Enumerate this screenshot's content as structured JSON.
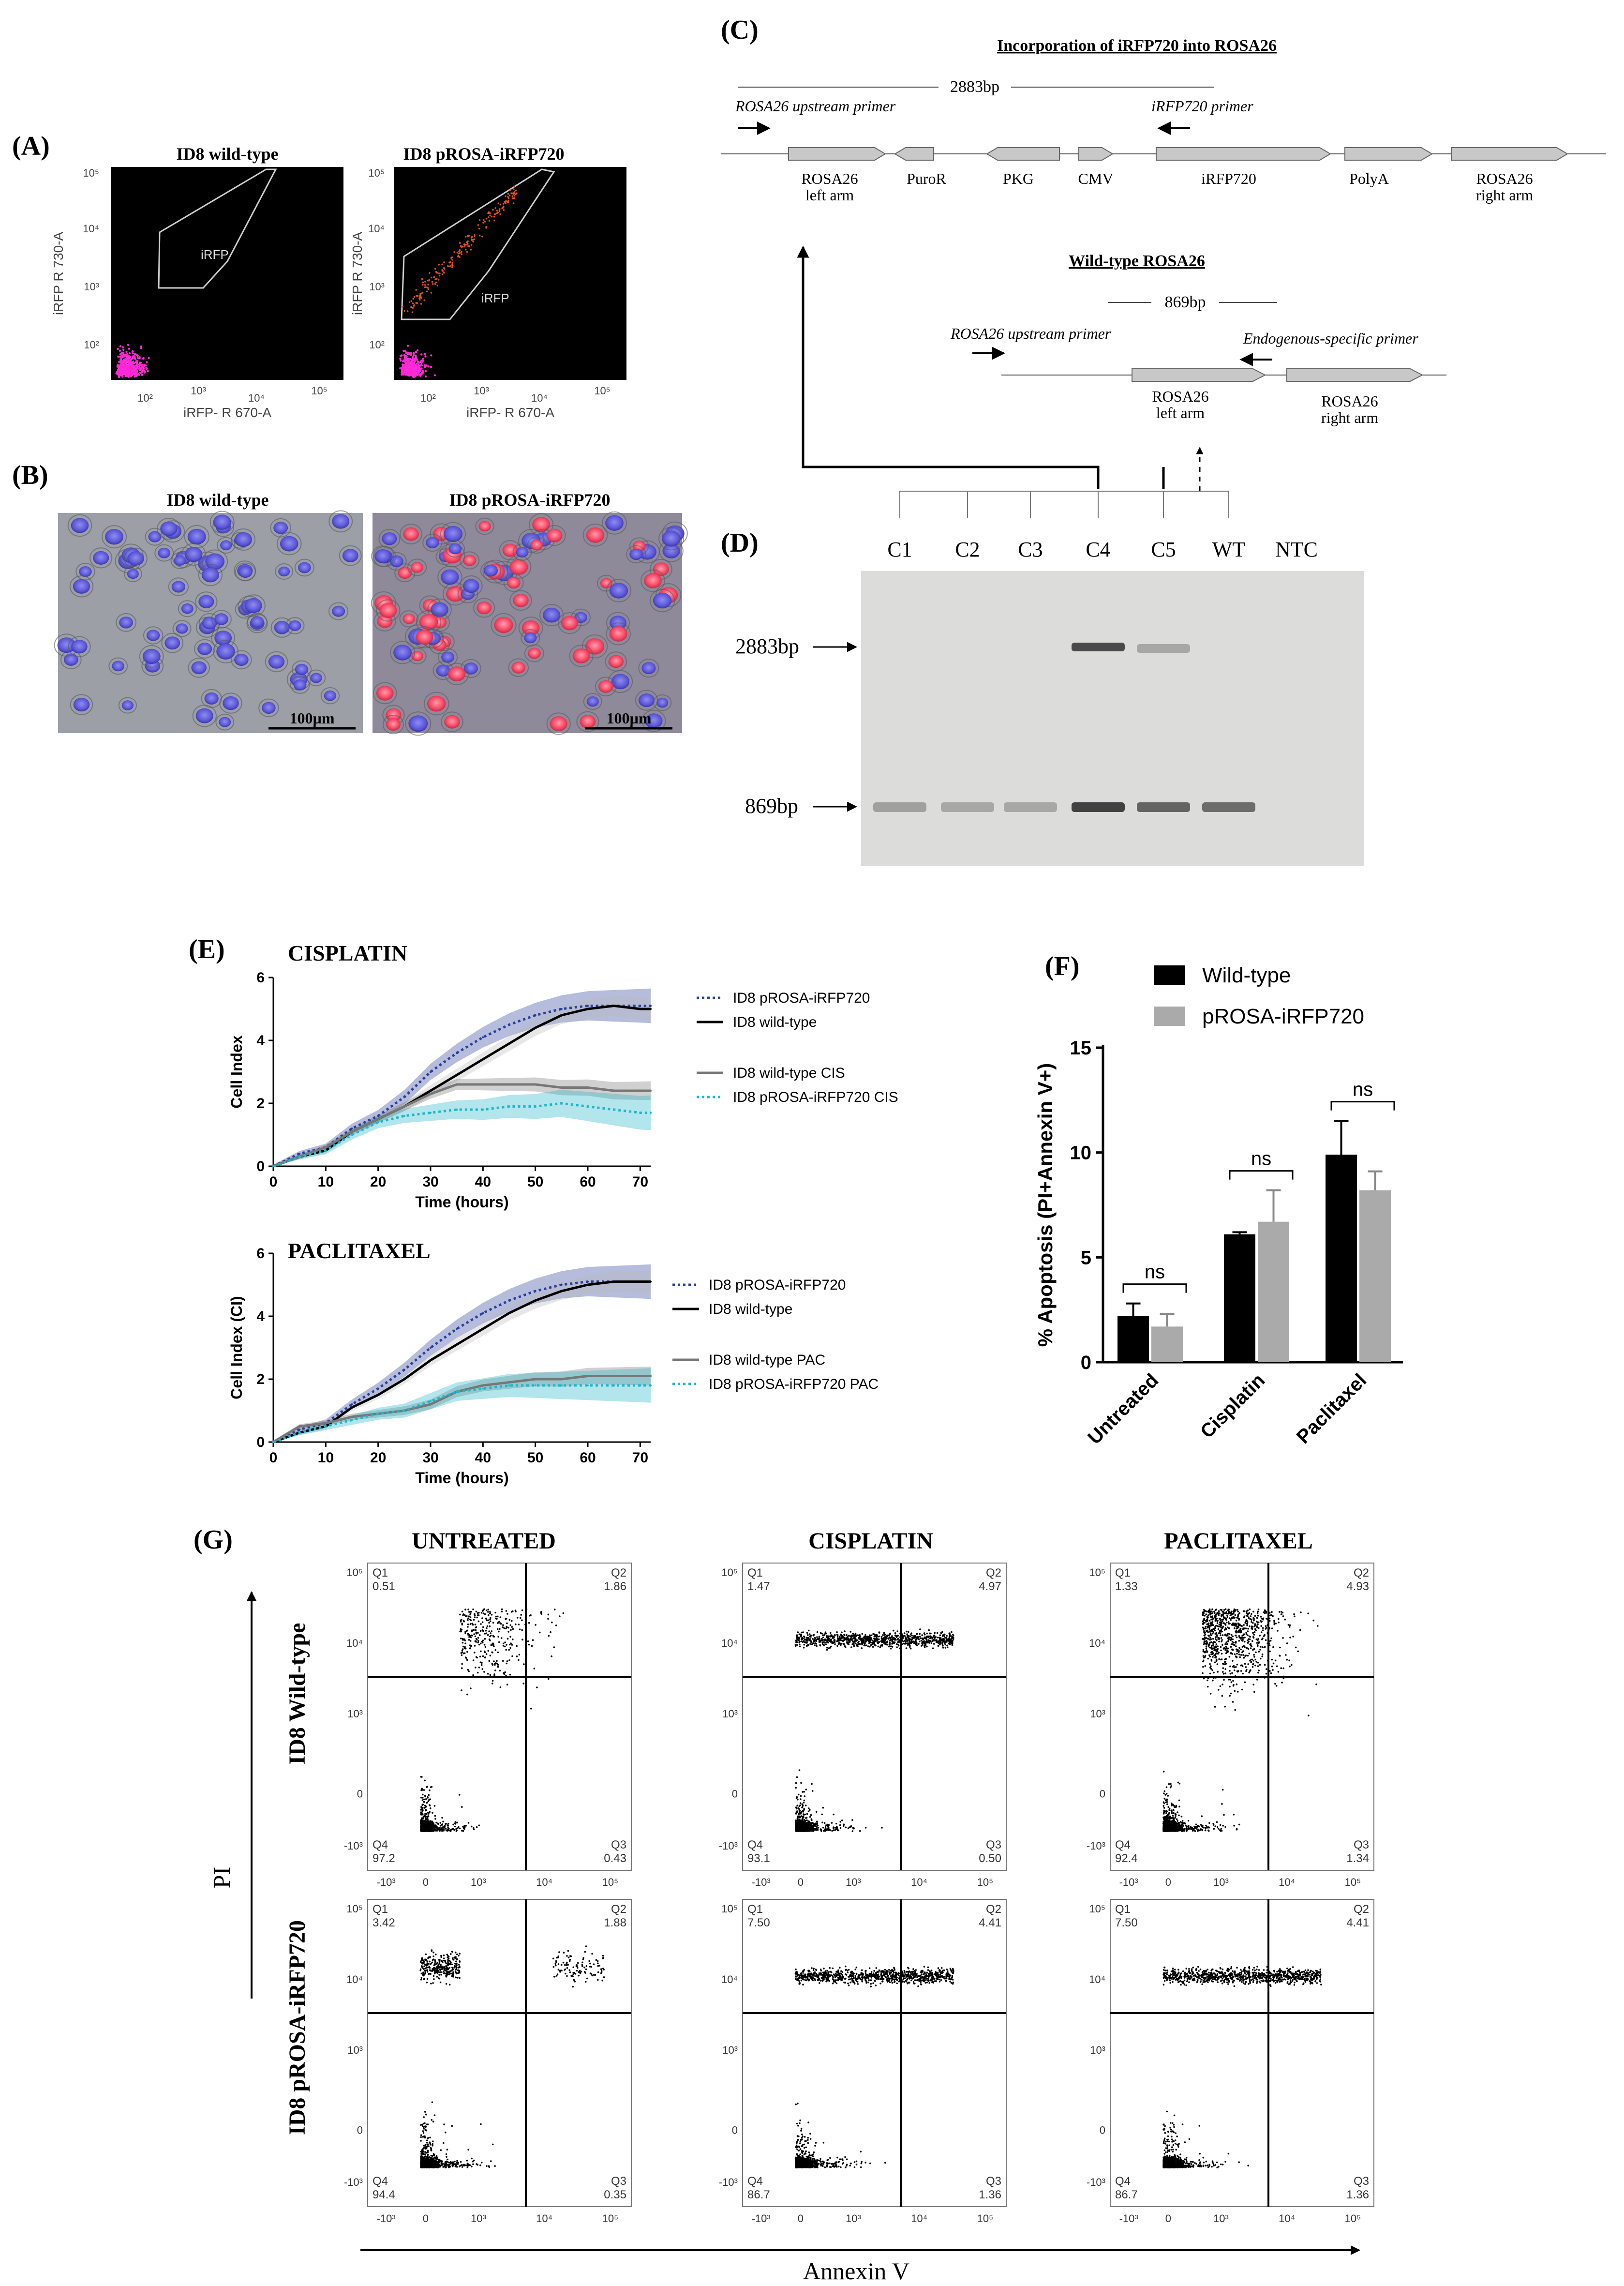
{
  "panelA": {
    "label": "(A)",
    "plots": [
      {
        "title": "ID8 wild-type",
        "gate": "iRFP",
        "ylabel": "iRFP R 730-A",
        "xlabel": "iRFP- R 670-A"
      },
      {
        "title": "ID8 pROSA-iRFP720",
        "gate": "iRFP",
        "ylabel": "iRFP R 730-A",
        "xlabel": "iRFP- R 670-A"
      }
    ],
    "yticks": [
      "10²",
      "10³",
      "10⁴",
      "10⁵"
    ],
    "xticks": [
      "10²",
      "10³",
      "10⁴",
      "10⁵"
    ]
  },
  "panelB": {
    "label": "(B)",
    "images": [
      {
        "title": "ID8 wild-type",
        "scale": "100µm"
      },
      {
        "title": "ID8 pROSA-iRFP720",
        "scale": "100µm"
      }
    ]
  },
  "panelC": {
    "label": "(C)",
    "title1": "Incorporation of iRFP720 into ROSA26",
    "size1": "2883bp",
    "primer_up1": "ROSA26 upstream primer",
    "primer_irfp": "iRFP720 primer",
    "elements1": [
      "ROSA26\nleft arm",
      "PuroR",
      "PKG",
      "CMV",
      "iRFP720",
      "PolyA",
      "ROSA26\nright arm"
    ],
    "title2": "Wild-type ROSA26",
    "size2": "869bp",
    "primer_up2": "ROSA26 upstream primer",
    "primer_endo": "Endogenous-specific primer",
    "elements2": [
      "ROSA26\nleft arm",
      "ROSA26\nright arm"
    ]
  },
  "panelD": {
    "label": "(D)",
    "lanes": [
      "C1",
      "C2",
      "C3",
      "C4",
      "C5",
      "WT",
      "NTC"
    ],
    "band_large": "2883bp",
    "band_small": "869bp"
  },
  "panelE": {
    "label": "(E)",
    "charts": [
      {
        "title": "CISPLATIN",
        "ylabel": "Cell Index",
        "xlabel": "Time (hours)",
        "yticks": [
          "0",
          "2",
          "4",
          "6"
        ],
        "xticks": [
          "0",
          "10",
          "20",
          "30",
          "40",
          "50",
          "60",
          "70"
        ],
        "legend": [
          "ID8 pROSA-iRFP720",
          "ID8 wild-type",
          "ID8 wild-type CIS",
          "ID8 pROSA-iRFP720 CIS"
        ]
      },
      {
        "title": "PACLITAXEL",
        "ylabel": "Cell Index (CI)",
        "xlabel": "Time (hours)",
        "yticks": [
          "0",
          "2",
          "4",
          "6"
        ],
        "xticks": [
          "0",
          "10",
          "20",
          "30",
          "40",
          "50",
          "60",
          "70"
        ],
        "legend": [
          "ID8 pROSA-iRFP720",
          "ID8 wild-type",
          "ID8 wild-type PAC",
          "ID8 pROSA-iRFP720 PAC"
        ]
      }
    ]
  },
  "panelF": {
    "label": "(F)",
    "ylabel": "% Apoptosis (PI+Annexin V+)",
    "yticks": [
      "0",
      "5",
      "10",
      "15"
    ],
    "legend": [
      "Wild-type",
      "pROSA-iRFP720"
    ],
    "categories": [
      "Untreated",
      "Cisplatin",
      "Paclitaxel"
    ],
    "sig": [
      "ns",
      "ns",
      "ns"
    ]
  },
  "panelG": {
    "label": "(G)",
    "cols": [
      "UNTREATED",
      "CISPLATIN",
      "PACLITAXEL"
    ],
    "rows": [
      "ID8 Wild-type",
      "ID8 pROSA-iRFP720"
    ],
    "yaxis": "PI",
    "xaxis": "Annexin V",
    "quadrants": [
      [
        "0.51",
        "1.86",
        "97.2",
        "0.43"
      ],
      [
        "1.47",
        "4.97",
        "93.1",
        "0.50"
      ],
      [
        "1.33",
        "4.93",
        "92.4",
        "1.34"
      ],
      [
        "3.42",
        "1.88",
        "94.4",
        "0.35"
      ],
      [
        "7.50",
        "4.41",
        "86.7",
        "1.36"
      ],
      [
        "7.50",
        "4.41",
        "86.7",
        "1.36"
      ]
    ],
    "qnames": [
      "Q1",
      "Q2",
      "Q4",
      "Q3"
    ],
    "yticks": [
      "10⁵",
      "10⁴",
      "10³",
      "0",
      "-10³"
    ],
    "xticks": [
      "-10³",
      "0",
      "10³",
      "10⁴",
      "10⁵"
    ]
  },
  "chart_data": [
    {
      "type": "line",
      "title": "CISPLATIN",
      "xlabel": "Time (hours)",
      "ylabel": "Cell Index",
      "xlim": [
        0,
        72
      ],
      "ylim": [
        0,
        6
      ],
      "x": [
        0,
        5,
        10,
        15,
        20,
        25,
        30,
        35,
        40,
        45,
        50,
        55,
        60,
        65,
        70,
        72
      ],
      "series": [
        {
          "name": "ID8 pROSA-iRFP720",
          "color": "#2b3f9a",
          "values": [
            0,
            0.4,
            0.6,
            1.2,
            1.6,
            2.2,
            3.0,
            3.6,
            4.1,
            4.5,
            4.8,
            5.0,
            5.1,
            5.1,
            5.1,
            5.1
          ]
        },
        {
          "name": "ID8 wild-type",
          "color": "#000000",
          "values": [
            0,
            0.3,
            0.5,
            1.1,
            1.5,
            1.9,
            2.4,
            2.9,
            3.4,
            3.9,
            4.4,
            4.8,
            5.0,
            5.1,
            5.0,
            5.0
          ]
        },
        {
          "name": "ID8 wild-type CIS",
          "color": "#777777",
          "values": [
            0,
            0.3,
            0.6,
            1.1,
            1.5,
            1.9,
            2.3,
            2.6,
            2.6,
            2.6,
            2.6,
            2.5,
            2.5,
            2.4,
            2.4,
            2.4
          ]
        },
        {
          "name": "ID8 pROSA-iRFP720 CIS",
          "color": "#22b5c8",
          "values": [
            0,
            0.3,
            0.5,
            1.0,
            1.4,
            1.6,
            1.7,
            1.8,
            1.8,
            1.9,
            1.9,
            2.0,
            1.9,
            1.8,
            1.7,
            1.7
          ]
        }
      ]
    },
    {
      "type": "line",
      "title": "PACLITAXEL",
      "xlabel": "Time (hours)",
      "ylabel": "Cell Index (CI)",
      "xlim": [
        0,
        72
      ],
      "ylim": [
        0,
        6
      ],
      "x": [
        0,
        5,
        10,
        15,
        20,
        25,
        30,
        35,
        40,
        45,
        50,
        55,
        60,
        65,
        70,
        72
      ],
      "series": [
        {
          "name": "ID8 pROSA-iRFP720",
          "color": "#2b3f9a",
          "values": [
            0,
            0.4,
            0.6,
            1.2,
            1.7,
            2.3,
            3.0,
            3.6,
            4.1,
            4.5,
            4.8,
            5.0,
            5.1,
            5.1,
            5.1,
            5.1
          ]
        },
        {
          "name": "ID8 wild-type",
          "color": "#000000",
          "values": [
            0,
            0.3,
            0.5,
            1.1,
            1.5,
            2.0,
            2.6,
            3.1,
            3.6,
            4.1,
            4.5,
            4.8,
            5.0,
            5.1,
            5.1,
            5.1
          ]
        },
        {
          "name": "ID8 wild-type PAC",
          "color": "#777777",
          "values": [
            0,
            0.5,
            0.6,
            0.8,
            0.9,
            1.0,
            1.2,
            1.6,
            1.8,
            1.9,
            2.0,
            2.0,
            2.1,
            2.1,
            2.1,
            2.1
          ]
        },
        {
          "name": "ID8 pROSA-iRFP720 PAC",
          "color": "#22b5c8",
          "values": [
            0,
            0.3,
            0.5,
            0.7,
            0.9,
            1.0,
            1.3,
            1.6,
            1.7,
            1.8,
            1.8,
            1.8,
            1.8,
            1.8,
            1.8,
            1.8
          ]
        }
      ]
    },
    {
      "type": "bar",
      "ylabel": "% Apoptosis (PI+Annexin V+)",
      "categories": [
        "Untreated",
        "Cisplatin",
        "Paclitaxel"
      ],
      "ylim": [
        0,
        15
      ],
      "series": [
        {
          "name": "Wild-type",
          "color": "#000000",
          "values": [
            2.2,
            6.1,
            9.9
          ],
          "errors": [
            0.6,
            0.1,
            1.6
          ]
        },
        {
          "name": "pROSA-iRFP720",
          "color": "#aaaaaa",
          "values": [
            1.7,
            6.7,
            8.2
          ],
          "errors": [
            0.6,
            1.5,
            0.9
          ]
        }
      ]
    }
  ]
}
